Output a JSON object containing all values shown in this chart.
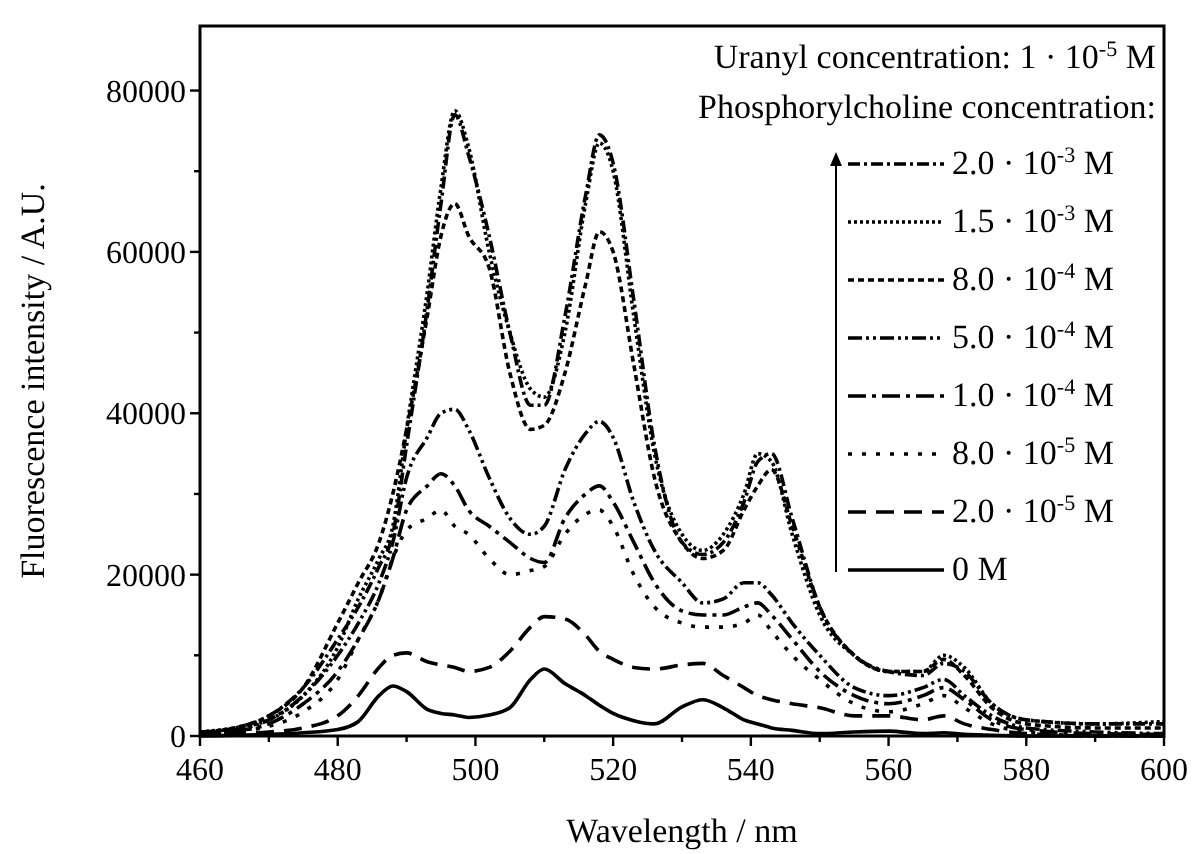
{
  "chart_data": {
    "type": "line",
    "xlabel": "Wavelength / nm",
    "ylabel": "Fluorescence intensity / A.U.",
    "annotations": [
      "Uranyl concentration: 1 · 10$^{-5}$ M"
    ],
    "legend_title": "Phosphorylcholine concentration:",
    "legend": "top right",
    "xlim": [
      460,
      600
    ],
    "ylim": [
      0,
      88000
    ],
    "xticks": [
      460,
      {
        "value": 470,
        "label": null
      },
      480,
      {
        "value": 490,
        "label": null
      },
      500,
      {
        "value": 510,
        "label": null
      },
      520,
      {
        "value": 530,
        "label": null
      },
      540,
      {
        "value": 550,
        "label": null
      },
      560,
      {
        "value": 570,
        "label": null
      },
      580,
      {
        "value": 590,
        "label": null
      },
      600
    ],
    "yticks": [
      0,
      {
        "value": 10000,
        "label": null
      },
      20000,
      {
        "value": 30000,
        "label": null
      },
      40000,
      {
        "value": 50000,
        "label": null
      },
      60000,
      {
        "value": 70000,
        "label": null
      },
      80000
    ],
    "x": [
      460,
      465,
      470,
      475,
      480,
      483,
      486,
      488,
      490,
      493,
      495,
      497,
      499,
      502,
      505,
      508,
      510,
      513,
      516,
      518,
      520,
      523,
      526,
      530,
      533,
      536,
      539,
      541,
      543,
      546,
      550,
      555,
      560,
      565,
      568,
      571,
      575,
      580,
      590,
      600
    ],
    "series": [
      {
        "name": "2.0 · 10$^{-3}$ M",
        "color": "#000000",
        "line_style": "dashdot",
        "values": [
          500,
          1000,
          2500,
          6000,
          12000,
          16000,
          21000,
          25000,
          36000,
          53000,
          66000,
          77000,
          72000,
          62000,
          50000,
          41000,
          41000,
          52000,
          67000,
          74500,
          71000,
          54000,
          36000,
          24000,
          22500,
          24000,
          29000,
          34000,
          35000,
          27000,
          16000,
          10000,
          8000,
          7500,
          9000,
          8000,
          4000,
          2000,
          1500,
          1500
        ]
      },
      {
        "name": "1.5 · 10$^{-3}$ M",
        "color": "#000000",
        "line_style": "dotted",
        "values": [
          500,
          1000,
          2000,
          5000,
          11000,
          17000,
          22000,
          26000,
          38000,
          55000,
          68000,
          77500,
          73000,
          60000,
          50000,
          43000,
          42000,
          50000,
          66000,
          73500,
          70000,
          52000,
          35000,
          25000,
          23000,
          25000,
          30000,
          35000,
          34000,
          25000,
          15000,
          10000,
          8000,
          8000,
          10000,
          8500,
          4000,
          2000,
          1500,
          1800
        ]
      },
      {
        "name": "8.0 · 10$^{-4}$ M",
        "color": "#000000",
        "line_style": "shortdashed",
        "values": [
          400,
          1000,
          2500,
          6000,
          14000,
          19000,
          24000,
          30000,
          38000,
          52000,
          62000,
          66000,
          62000,
          58000,
          45000,
          38000,
          38500,
          45000,
          56000,
          62500,
          60000,
          46000,
          32000,
          24000,
          22000,
          23000,
          28000,
          31000,
          33000,
          26000,
          16000,
          10000,
          8000,
          8000,
          9500,
          7500,
          3500,
          1500,
          1000,
          1000
        ]
      },
      {
        "name": "5.0 · 10$^{-4}$ M",
        "color": "#000000",
        "line_style": "dashdotdot",
        "values": [
          300,
          700,
          2000,
          5000,
          10000,
          14000,
          19000,
          24000,
          32000,
          37000,
          40000,
          40500,
          38000,
          32000,
          27000,
          25000,
          26000,
          33000,
          37500,
          39000,
          37000,
          29000,
          23000,
          19000,
          16500,
          17000,
          19000,
          19000,
          17500,
          14000,
          10000,
          6000,
          5000,
          6000,
          7000,
          5000,
          2500,
          1000,
          500,
          300
        ]
      },
      {
        "name": "1.0 · 10$^{-4}$ M",
        "color": "#000000",
        "line_style": "longdashdot",
        "values": [
          300,
          600,
          1500,
          4000,
          8000,
          12000,
          17000,
          22000,
          28000,
          31000,
          32500,
          31000,
          28000,
          26000,
          24000,
          22000,
          21500,
          27000,
          30000,
          31000,
          29000,
          24000,
          19000,
          15500,
          15000,
          15000,
          16000,
          16500,
          15000,
          12000,
          8000,
          5000,
          4000,
          5000,
          6000,
          4500,
          2000,
          800,
          300,
          200
        ]
      },
      {
        "name": "8.0 · 10$^{-5}$ M",
        "color": "#000000",
        "line_style": "sparsedotted",
        "values": [
          300,
          600,
          1200,
          3000,
          7000,
          12000,
          17000,
          22000,
          25500,
          27000,
          28000,
          26000,
          25000,
          22000,
          20000,
          20500,
          21000,
          25000,
          27500,
          28000,
          26000,
          20000,
          16000,
          14000,
          13500,
          13500,
          14000,
          15000,
          13000,
          10000,
          7000,
          4000,
          3000,
          4000,
          5000,
          3500,
          1500,
          500,
          0,
          0
        ]
      },
      {
        "name": "2.0 · 10$^{-5}$ M",
        "color": "#000000",
        "line_style": "dashed",
        "values": [
          200,
          300,
          500,
          1000,
          2500,
          5000,
          8500,
          10000,
          10300,
          9200,
          8800,
          8500,
          8000,
          8500,
          10500,
          13500,
          14800,
          14500,
          12500,
          10500,
          9500,
          8500,
          8300,
          8800,
          9000,
          7500,
          6000,
          5000,
          4500,
          4000,
          3500,
          2500,
          2500,
          2000,
          2500,
          1500,
          800,
          300,
          0,
          0
        ]
      },
      {
        "name": "0 M",
        "color": "#000000",
        "line_style": "solid",
        "values": [
          0,
          100,
          200,
          400,
          800,
          1800,
          5000,
          6200,
          5500,
          3300,
          2800,
          2600,
          2300,
          2600,
          3500,
          7000,
          8300,
          6500,
          5000,
          3800,
          2800,
          1900,
          1500,
          3600,
          4500,
          3500,
          2000,
          1500,
          1000,
          700,
          300,
          500,
          600,
          300,
          400,
          200,
          100,
          0,
          0,
          0
        ]
      }
    ]
  }
}
